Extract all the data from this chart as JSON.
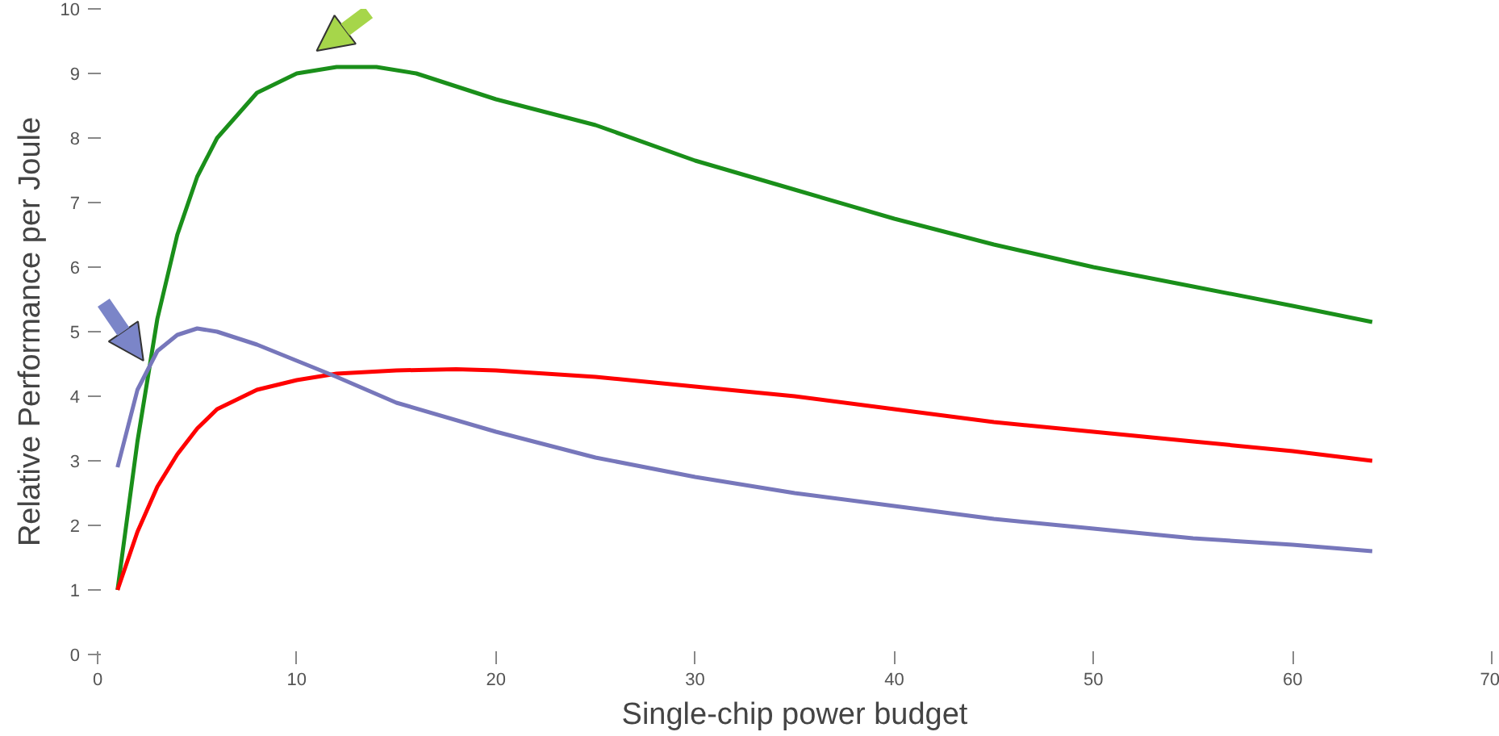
{
  "chart_data": {
    "type": "line",
    "xlabel": "Single-chip power budget",
    "ylabel": "Relative Performance per Joule",
    "xlim": [
      0,
      70
    ],
    "ylim": [
      0,
      10
    ],
    "xticks": [
      0,
      10,
      20,
      30,
      40,
      50,
      60,
      70
    ],
    "yticks": [
      0,
      1,
      2,
      3,
      4,
      5,
      6,
      7,
      8,
      9,
      10
    ],
    "grid": false,
    "marker": "none",
    "line_style": "solid",
    "series": [
      {
        "color": "#1a8f1a",
        "x": [
          1,
          2,
          3,
          4,
          5,
          6,
          8,
          10,
          12,
          14,
          16,
          20,
          25,
          30,
          35,
          40,
          45,
          50,
          55,
          60,
          64
        ],
        "values": [
          1,
          3.3,
          5.2,
          6.5,
          7.4,
          8.0,
          8.7,
          9.0,
          9.1,
          9.1,
          9.0,
          8.6,
          8.2,
          7.65,
          7.2,
          6.75,
          6.35,
          6.0,
          5.7,
          5.4,
          5.15
        ]
      },
      {
        "color": "#ff0000",
        "x": [
          1,
          2,
          3,
          4,
          5,
          6,
          8,
          10,
          12,
          15,
          18,
          20,
          25,
          30,
          35,
          40,
          45,
          50,
          55,
          60,
          64
        ],
        "values": [
          1,
          1.9,
          2.6,
          3.1,
          3.5,
          3.8,
          4.1,
          4.25,
          4.35,
          4.4,
          4.42,
          4.4,
          4.3,
          4.15,
          4.0,
          3.8,
          3.6,
          3.45,
          3.3,
          3.15,
          3.0
        ]
      },
      {
        "color": "#7777bb",
        "x": [
          1,
          2,
          3,
          4,
          5,
          6,
          8,
          10,
          12,
          15,
          20,
          25,
          30,
          35,
          40,
          45,
          50,
          55,
          60,
          64
        ],
        "values": [
          2.9,
          4.1,
          4.7,
          4.95,
          5.05,
          5.0,
          4.8,
          4.55,
          4.3,
          3.9,
          3.45,
          3.05,
          2.75,
          2.5,
          2.3,
          2.1,
          1.95,
          1.8,
          1.7,
          1.6
        ]
      }
    ]
  }
}
